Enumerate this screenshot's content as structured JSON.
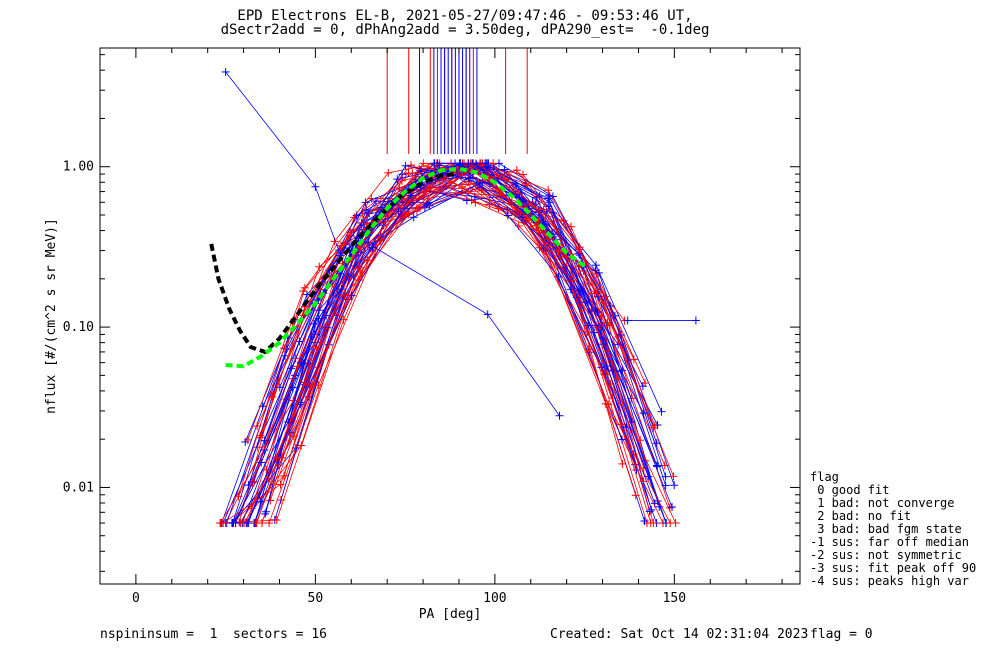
{
  "chart_data": {
    "type": "scatter",
    "title": "EPD Electrons EL-B, 2021-05-27/09:47:46 - 09:53:46 UT,",
    "subtitle": "dSectr2add = 0, dPhAng2add = 3.50deg, dPA290_est=  -0.1deg",
    "xlabel": "PA [deg]",
    "ylabel": "nflux [#/(cm^2 s sr MeV)]",
    "xlim": [
      -10,
      185
    ],
    "ylim": [
      0.0025,
      5.5
    ],
    "yscale": "log",
    "xticks": [
      0,
      50,
      100,
      150
    ],
    "xtick_labels": [
      "0",
      "50",
      "100",
      "150"
    ],
    "yticks": [
      0.01,
      0.1,
      1.0
    ],
    "ytick_labels": [
      "0.01",
      "0.10",
      "1.00"
    ],
    "series": [
      {
        "color": "#0000ff",
        "style": "line+cross"
      },
      {
        "color": "#ff0000",
        "style": "line+cross"
      },
      {
        "color": "#000000",
        "style": "dashed-fit",
        "x": [
          21,
          23,
          26,
          29,
          32,
          36,
          40,
          45,
          50,
          56,
          62,
          68,
          74,
          80,
          85,
          89
        ],
        "y": [
          0.33,
          0.2,
          0.13,
          0.095,
          0.075,
          0.07,
          0.085,
          0.12,
          0.17,
          0.25,
          0.36,
          0.5,
          0.66,
          0.8,
          0.88,
          0.9
        ]
      },
      {
        "color": "#00ff00",
        "style": "dashed-fit",
        "x": [
          25,
          30,
          35,
          40,
          45,
          50,
          55,
          60,
          65,
          70,
          75,
          80,
          85,
          90,
          95,
          100,
          105,
          110,
          115,
          120,
          125
        ],
        "y": [
          0.058,
          0.057,
          0.066,
          0.08,
          0.105,
          0.14,
          0.2,
          0.28,
          0.4,
          0.55,
          0.7,
          0.85,
          0.95,
          0.97,
          0.92,
          0.8,
          0.65,
          0.5,
          0.38,
          0.29,
          0.24
        ]
      }
    ],
    "sector_markers": {
      "red_x": [
        70,
        76,
        82,
        84,
        86,
        88,
        90,
        92,
        94,
        103,
        109
      ],
      "blue_x": [
        79,
        83,
        85,
        86,
        87,
        88,
        89,
        90,
        91,
        92,
        93,
        95
      ],
      "y_from": 1.2,
      "y_to": 5.5
    },
    "legend": [
      "flag",
      " 0 good fit",
      " 1 bad: not converge",
      " 2 bad: no fit",
      " 3 bad: bad fgm state",
      "-1 sus: far off median",
      "-2 sus: not symmetric",
      "-3 sus: fit peak off 90",
      "-4 sus: peaks high var"
    ],
    "legend_placement": "right"
  },
  "footer": {
    "left": "nspininsum =  1  sectors = 16",
    "created": "Created: Sat Oct 14 02:31:04 2023",
    "flag": "flag = 0"
  }
}
